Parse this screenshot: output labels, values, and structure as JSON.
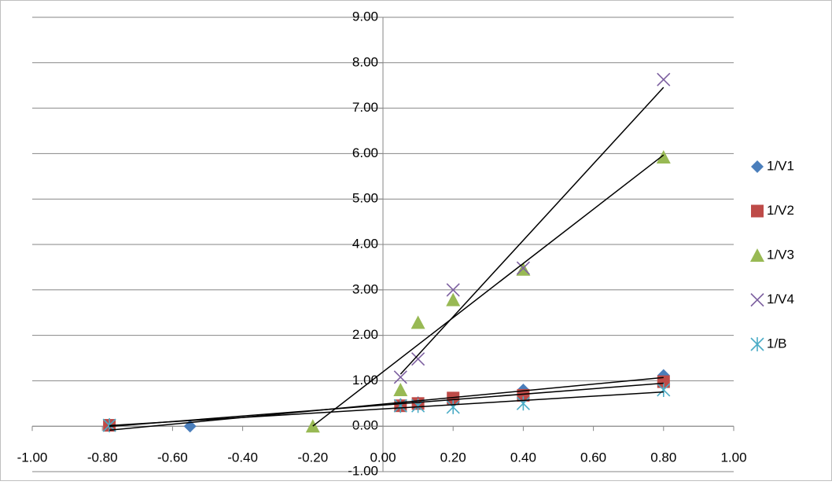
{
  "chart_data": {
    "type": "scatter",
    "series": [
      {
        "name": "1/V1",
        "color": "#4a7ebb",
        "marker": "diamond",
        "x": [
          -0.78,
          -0.55,
          0.05,
          0.1,
          0.2,
          0.4,
          0.8
        ],
        "values": [
          0.02,
          0,
          0.48,
          0.52,
          0.62,
          0.8,
          1.12
        ]
      },
      {
        "name": "1/V2",
        "color": "#be4b48",
        "marker": "square",
        "x": [
          -0.78,
          0.05,
          0.1,
          0.2,
          0.4,
          0.8
        ],
        "values": [
          0.02,
          0.45,
          0.5,
          0.62,
          0.68,
          0.98
        ]
      },
      {
        "name": "1/V3",
        "color": "#98b954",
        "marker": "triangle",
        "x": [
          -0.2,
          0.05,
          0.1,
          0.2,
          0.4,
          0.8
        ],
        "values": [
          0,
          0.8,
          2.28,
          2.78,
          3.45,
          5.92
        ]
      },
      {
        "name": "1/V4",
        "color": "#7d60a0",
        "marker": "x",
        "x": [
          0.05,
          0.1,
          0.2,
          0.4,
          0.8
        ],
        "values": [
          1.08,
          1.48,
          3.0,
          3.48,
          7.63
        ]
      },
      {
        "name": "1/B",
        "color": "#4bacc6",
        "marker": "star",
        "x": [
          -0.78,
          0.05,
          0.1,
          0.2,
          0.4,
          0.8
        ],
        "values": [
          0.02,
          0.45,
          0.45,
          0.42,
          0.5,
          0.8
        ]
      }
    ],
    "trendline": true,
    "trendline_color": "#000000",
    "xlim": [
      -1,
      1
    ],
    "xticks": [
      {
        "value": -1,
        "label": "-1.00"
      },
      {
        "value": -0.8,
        "label": "-0.80"
      },
      {
        "value": -0.6,
        "label": "-0.60"
      },
      {
        "value": -0.4,
        "label": "-0.40"
      },
      {
        "value": -0.2,
        "label": "-0.20"
      },
      {
        "value": 0,
        "label": "0.00"
      },
      {
        "value": 0.2,
        "label": "0.20"
      },
      {
        "value": 0.4,
        "label": "0.40"
      },
      {
        "value": 0.6,
        "label": "0.60"
      },
      {
        "value": 0.8,
        "label": "0.80"
      },
      {
        "value": 1,
        "label": "1.00"
      }
    ],
    "ylim": [
      -1,
      9
    ],
    "yticks": [
      {
        "value": -1,
        "label": "-1.00"
      },
      {
        "value": 0,
        "label": "0.00"
      },
      {
        "value": 1,
        "label": "1.00"
      },
      {
        "value": 2,
        "label": "2.00"
      },
      {
        "value": 3,
        "label": "3.00"
      },
      {
        "value": 4,
        "label": "4.00"
      },
      {
        "value": 5,
        "label": "5.00"
      },
      {
        "value": 6,
        "label": "6.00"
      },
      {
        "value": 7,
        "label": "7.00"
      },
      {
        "value": 8,
        "label": "8.00"
      },
      {
        "value": 9,
        "label": "9.00"
      }
    ],
    "grid": true,
    "legend": "right"
  }
}
